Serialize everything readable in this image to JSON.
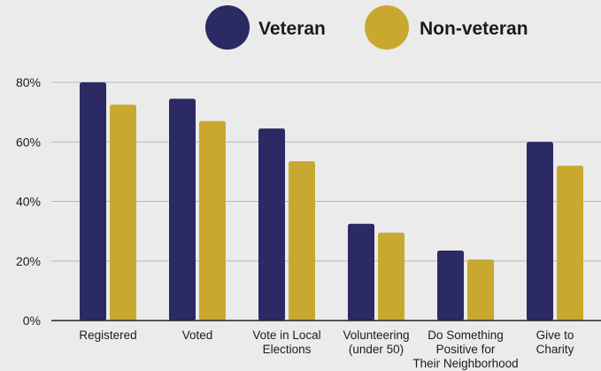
{
  "chart_data": {
    "type": "bar",
    "categories": [
      "Registered",
      "Voted",
      "Vote in Local Elections",
      "Volunteering (under 50)",
      "Do Something Positive for Their Neighborhood",
      "Give to Charity"
    ],
    "category_lines": [
      [
        "Registered"
      ],
      [
        "Voted"
      ],
      [
        "Vote in Local",
        "Elections"
      ],
      [
        "Volunteering",
        "(under 50)"
      ],
      [
        "Do Something",
        "Positive for",
        "Their Neighborhood"
      ],
      [
        "Give to",
        "Charity"
      ]
    ],
    "series": [
      {
        "name": "Veteran",
        "color": "#2b2a64",
        "values": [
          80,
          74.5,
          64.5,
          32.5,
          23.5,
          60
        ]
      },
      {
        "name": "Non-veteran",
        "color": "#c9a82f",
        "values": [
          72.5,
          67,
          53.5,
          29.5,
          20.5,
          52
        ]
      }
    ],
    "ylim": [
      0,
      80
    ],
    "yticks": [
      0,
      20,
      40,
      60,
      80
    ],
    "ytick_labels": [
      "0%",
      "20%",
      "40%",
      "60%",
      "80%"
    ],
    "grid": true,
    "legend": "top-center",
    "xlabel": "",
    "ylabel": "",
    "title": ""
  }
}
